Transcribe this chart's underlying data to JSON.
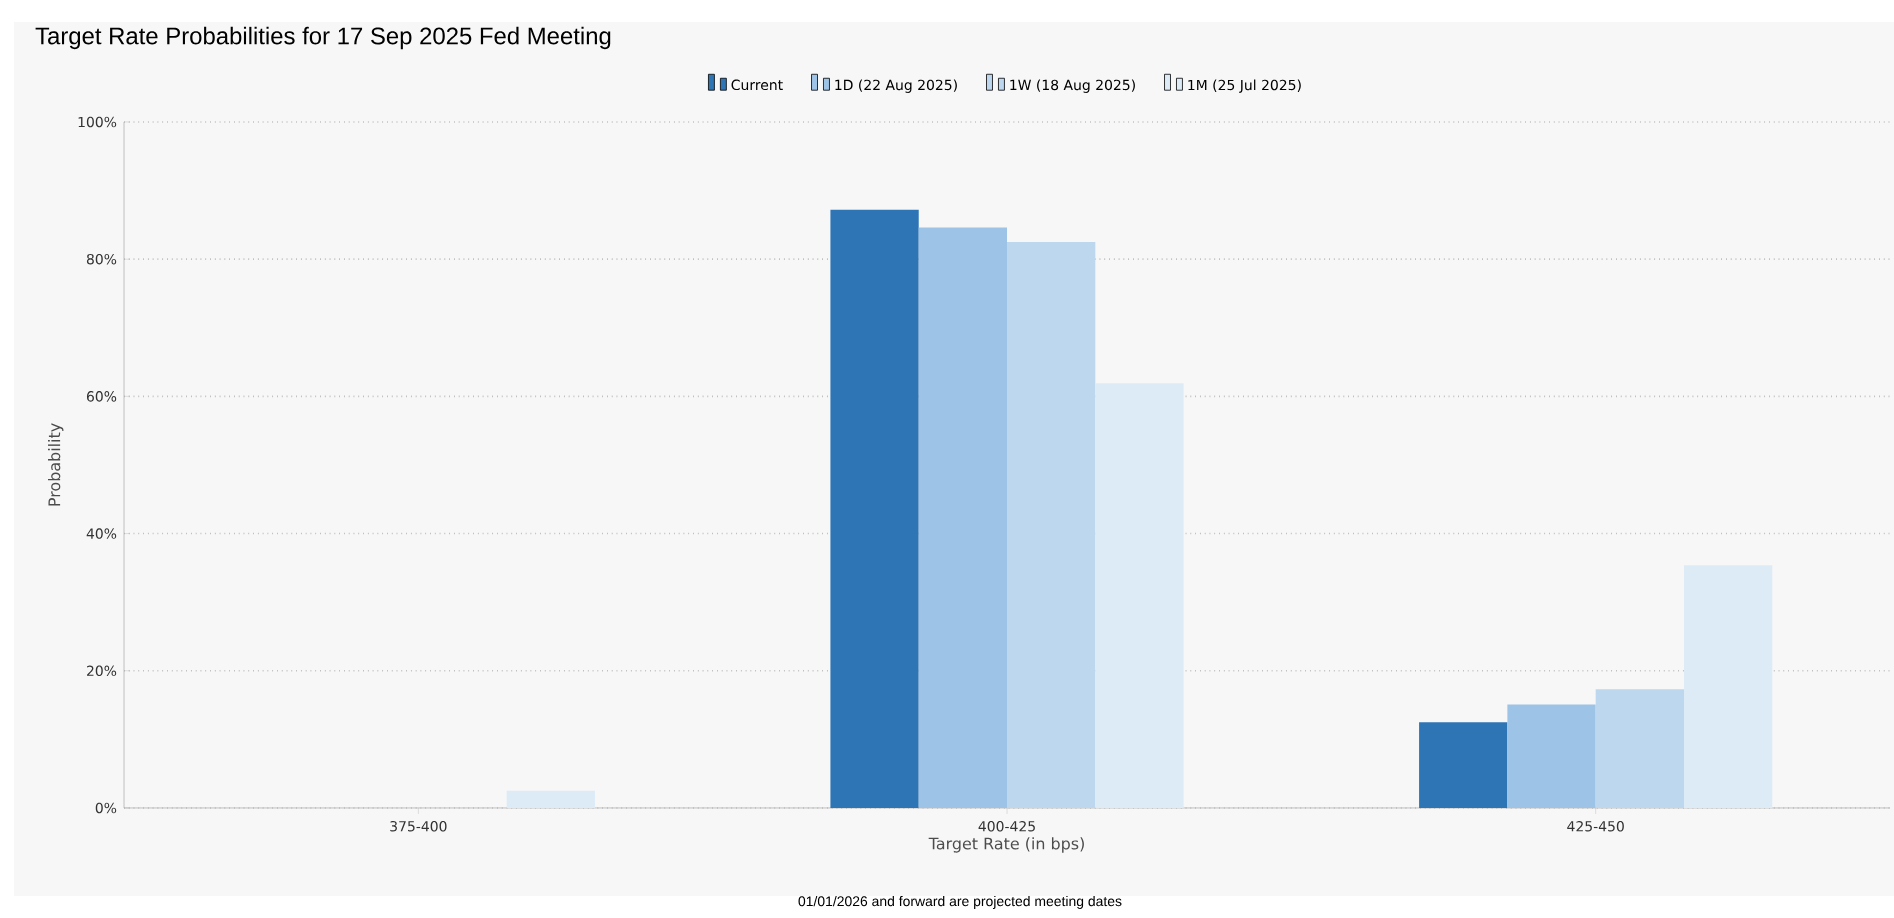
{
  "chart_data": {
    "type": "bar",
    "title": "Target Rate Probabilities for 17 Sep 2025 Fed Meeting",
    "xlabel": "Target Rate (in bps)",
    "ylabel": "Probability",
    "annotations": [
      "01/01/2026 and forward are projected meeting dates"
    ],
    "categories": [
      "375-400",
      "400-425",
      "425-450"
    ],
    "series": [
      {
        "name": "Current",
        "color": "#2e75b6",
        "values": [
          0,
          87.2,
          12.5
        ]
      },
      {
        "name": "1D (22 Aug 2025)",
        "color": "#9dc3e6",
        "values": [
          0,
          84.6,
          15.1
        ]
      },
      {
        "name": "1W (18 Aug 2025)",
        "color": "#bdd7ee",
        "values": [
          0,
          82.5,
          17.3
        ]
      },
      {
        "name": "1M (25 Jul 2025)",
        "color": "#ddebf7",
        "values": [
          2.5,
          61.9,
          35.4
        ]
      }
    ],
    "ylim": [
      0,
      100
    ],
    "yticks": [
      {
        "value": 0,
        "label": "0%"
      },
      {
        "value": 20,
        "label": "20%"
      },
      {
        "value": 40,
        "label": "40%"
      },
      {
        "value": 60,
        "label": "60%"
      },
      {
        "value": 80,
        "label": "80%"
      },
      {
        "value": 100,
        "label": "100%"
      }
    ],
    "grid": "y",
    "legend": "top"
  }
}
